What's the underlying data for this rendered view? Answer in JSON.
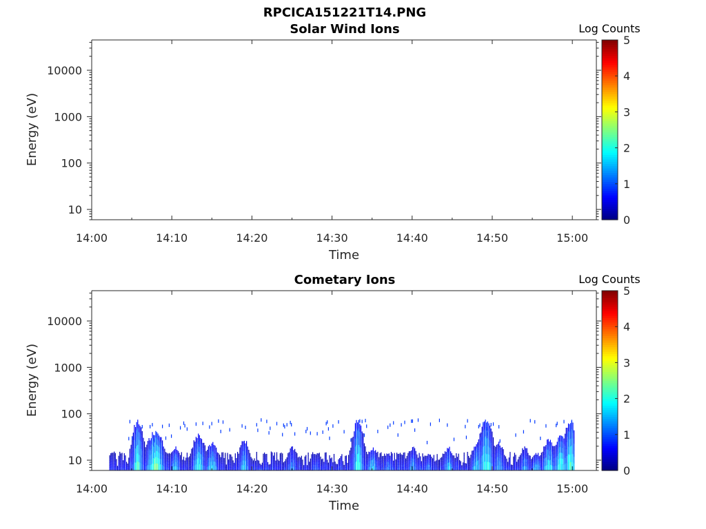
{
  "figure_title": "RPCICA151221T14.PNG",
  "chart_data": [
    {
      "type": "heatmap",
      "title": "Solar Wind Ions",
      "xlabel": "Time",
      "ylabel": "Energy (eV)",
      "x_ticks": [
        "14:00",
        "14:10",
        "14:20",
        "14:30",
        "14:40",
        "14:50",
        "15:00"
      ],
      "x_range_minutes": [
        0,
        63
      ],
      "y_scale": "log",
      "y_ticks": [
        10,
        100,
        1000,
        10000
      ],
      "ylim": [
        6,
        45000
      ],
      "colorbar": {
        "label": "Log Counts",
        "ticks": [
          0,
          1,
          2,
          3,
          4,
          5
        ],
        "range": [
          0,
          5
        ],
        "colormap": "jet"
      },
      "data": "empty"
    },
    {
      "type": "heatmap",
      "title": "Cometary Ions",
      "xlabel": "Time",
      "ylabel": "Energy (eV)",
      "x_ticks": [
        "14:00",
        "14:10",
        "14:20",
        "14:30",
        "14:40",
        "14:50",
        "15:00"
      ],
      "x_range_minutes": [
        0,
        63
      ],
      "y_scale": "log",
      "y_ticks": [
        10,
        100,
        1000,
        10000
      ],
      "ylim": [
        6,
        45000
      ],
      "colorbar": {
        "label": "Log Counts",
        "ticks": [
          0,
          1,
          2,
          3,
          4,
          5
        ],
        "range": [
          0,
          5
        ],
        "colormap": "jet"
      },
      "data_start_minute": 2.2,
      "data_end_minute": 60.2,
      "features": [
        {
          "t": 5.7,
          "emax": 80,
          "peak": 2.0,
          "w": 0.5
        },
        {
          "t": 7.9,
          "emax": 45,
          "peak": 2.3,
          "w": 0.8
        },
        {
          "t": 10.4,
          "emax": 20,
          "peak": 1.5,
          "w": 0.5
        },
        {
          "t": 13.3,
          "emax": 40,
          "peak": 1.8,
          "w": 0.6
        },
        {
          "t": 15.0,
          "emax": 25,
          "peak": 1.6,
          "w": 0.6
        },
        {
          "t": 19.0,
          "emax": 30,
          "peak": 1.5,
          "w": 0.5
        },
        {
          "t": 25.0,
          "emax": 20,
          "peak": 1.2,
          "w": 0.5
        },
        {
          "t": 28.0,
          "emax": 15,
          "peak": 0.9,
          "w": 0.5
        },
        {
          "t": 33.2,
          "emax": 80,
          "peak": 2.0,
          "w": 0.5
        },
        {
          "t": 35.0,
          "emax": 20,
          "peak": 1.6,
          "w": 0.5
        },
        {
          "t": 37.0,
          "emax": 15,
          "peak": 1.2,
          "w": 0.4
        },
        {
          "t": 40.0,
          "emax": 20,
          "peak": 1.3,
          "w": 0.5
        },
        {
          "t": 42.0,
          "emax": 15,
          "peak": 1.2,
          "w": 0.4
        },
        {
          "t": 44.5,
          "emax": 20,
          "peak": 1.5,
          "w": 0.5
        },
        {
          "t": 48.0,
          "emax": 25,
          "peak": 1.6,
          "w": 0.5
        },
        {
          "t": 49.2,
          "emax": 80,
          "peak": 2.0,
          "w": 0.6
        },
        {
          "t": 50.8,
          "emax": 25,
          "peak": 1.4,
          "w": 0.5
        },
        {
          "t": 54.0,
          "emax": 20,
          "peak": 1.3,
          "w": 0.5
        },
        {
          "t": 55.5,
          "emax": 15,
          "peak": 1.5,
          "w": 0.5
        },
        {
          "t": 57.0,
          "emax": 30,
          "peak": 1.8,
          "w": 0.6
        },
        {
          "t": 58.5,
          "emax": 35,
          "peak": 2.0,
          "w": 0.6
        },
        {
          "t": 59.7,
          "emax": 80,
          "peak": 2.1,
          "w": 0.5
        }
      ]
    }
  ]
}
